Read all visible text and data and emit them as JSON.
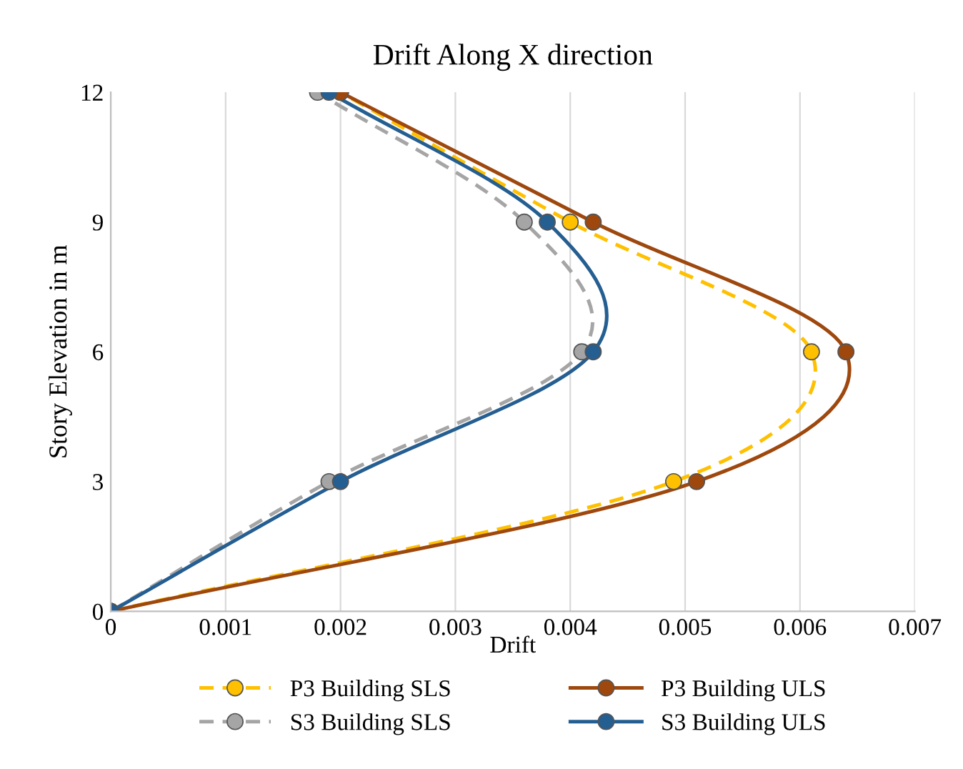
{
  "chart_data": {
    "type": "line",
    "title": "Drift Along X direction",
    "xlabel": "Drift",
    "ylabel": "Story Elevation in m",
    "series": [
      {
        "name": "P3 Building SLS",
        "color": "#ffc000",
        "line_style": "dashed",
        "x": [
          0,
          0.0049,
          0.0061,
          0.004,
          0.002
        ],
        "values": [
          0,
          3,
          6,
          9,
          12
        ]
      },
      {
        "name": "S3 Building SLS",
        "color": "#a5a5a5",
        "line_style": "dashed",
        "x": [
          0,
          0.0019,
          0.0041,
          0.0036,
          0.0018
        ],
        "values": [
          0,
          3,
          6,
          9,
          12
        ]
      },
      {
        "name": "P3 Building ULS",
        "color": "#9e480e",
        "line_style": "solid",
        "x": [
          0,
          0.0051,
          0.0064,
          0.0042,
          0.002
        ],
        "values": [
          0,
          3,
          6,
          9,
          12
        ]
      },
      {
        "name": "S3 Building ULS",
        "color": "#255e91",
        "line_style": "solid",
        "x": [
          0,
          0.002,
          0.0042,
          0.0038,
          0.0019
        ],
        "values": [
          0,
          3,
          6,
          9,
          12
        ]
      }
    ],
    "xlim": [
      0,
      0.007
    ],
    "xticks": [
      0,
      0.001,
      0.002,
      0.003,
      0.004,
      0.005,
      0.006,
      0.007
    ],
    "ylim": [
      0,
      12
    ],
    "yticks": [
      0,
      3,
      6,
      9,
      12
    ],
    "grid": "x",
    "legend": "bottom",
    "marker": "circle"
  }
}
